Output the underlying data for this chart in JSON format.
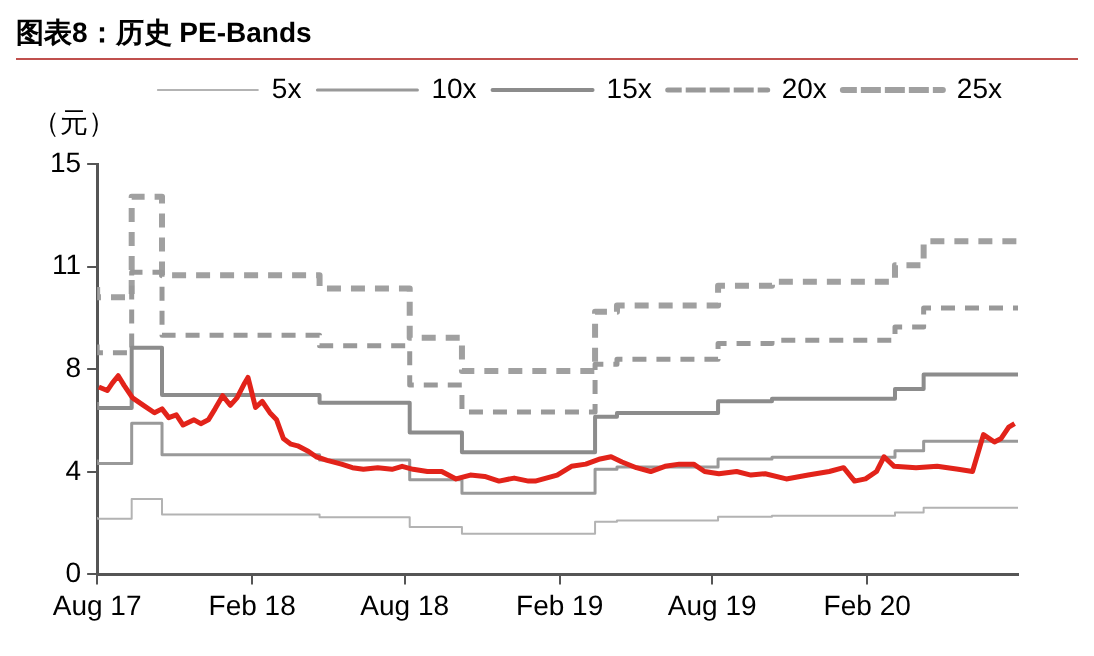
{
  "chart_data": {
    "type": "line",
    "title": "图表8：历史 PE-Bands",
    "ylabel": "（元）",
    "xlim": [
      "2017-08-01",
      "2020-07-29"
    ],
    "xticks": [
      {
        "value": "2017-08-01",
        "label": "Aug 17"
      },
      {
        "value": "2018-02-01",
        "label": "Feb 18"
      },
      {
        "value": "2018-08-01",
        "label": "Aug 18"
      },
      {
        "value": "2019-02-01",
        "label": "Feb 19"
      },
      {
        "value": "2019-08-01",
        "label": "Aug 19"
      },
      {
        "value": "2020-02-01",
        "label": "Feb 20"
      }
    ],
    "ylim": [
      0,
      15
    ],
    "yticks": [
      0,
      {
        "value": 3.75,
        "label": "4"
      },
      {
        "value": 7.5,
        "label": "8"
      },
      {
        "value": 11.25,
        "label": "11"
      },
      15
    ],
    "grid": false,
    "legend": "top",
    "marker": "none",
    "series": [
      {
        "type": "line",
        "color": "#e2231a",
        "line_style": "solid",
        "x": [
          "2017-08-03",
          "2017-08-13",
          "2017-08-19",
          "2017-08-26",
          "2017-09-02",
          "2017-09-12",
          "2017-09-25",
          "2017-10-08",
          "2017-10-17",
          "2017-10-25",
          "2017-11-03",
          "2017-11-11",
          "2017-11-24",
          "2017-12-02",
          "2017-12-11",
          "2017-12-19",
          "2017-12-28",
          "2018-01-06",
          "2018-01-14",
          "2018-01-23",
          "2018-01-27",
          "2018-02-05",
          "2018-02-13",
          "2018-02-22",
          "2018-03-02",
          "2018-03-10",
          "2018-03-19",
          "2018-03-27",
          "2018-04-09",
          "2018-04-18",
          "2018-05-01",
          "2018-05-18",
          "2018-05-31",
          "2018-06-13",
          "2018-06-30",
          "2018-07-17",
          "2018-07-29",
          "2018-08-11",
          "2018-08-28",
          "2018-09-14",
          "2018-10-01",
          "2018-10-18",
          "2018-11-04",
          "2018-11-21",
          "2018-12-09",
          "2018-12-26",
          "2019-01-03",
          "2019-01-29",
          "2019-02-15",
          "2019-03-04",
          "2019-03-21",
          "2019-04-03",
          "2019-04-16",
          "2019-05-03",
          "2019-05-20",
          "2019-06-06",
          "2019-06-23",
          "2019-07-10",
          "2019-07-23",
          "2019-08-09",
          "2019-08-30",
          "2019-09-16",
          "2019-10-03",
          "2019-10-28",
          "2019-11-23",
          "2019-12-18",
          "2020-01-04",
          "2020-01-17",
          "2020-01-30",
          "2020-02-12",
          "2020-02-21",
          "2020-03-04",
          "2020-03-30",
          "2020-04-24",
          "2020-05-19",
          "2020-06-05",
          "2020-06-18",
          "2020-07-01",
          "2020-07-09",
          "2020-07-18",
          "2020-07-25"
        ],
        "values": [
          6.85,
          6.72,
          6.99,
          7.26,
          6.91,
          6.45,
          6.18,
          5.91,
          6.05,
          5.73,
          5.83,
          5.46,
          5.65,
          5.51,
          5.65,
          6.05,
          6.53,
          6.18,
          6.45,
          6.99,
          7.2,
          6.1,
          6.32,
          5.91,
          5.65,
          4.97,
          4.76,
          4.7,
          4.49,
          4.3,
          4.17,
          4.03,
          3.9,
          3.84,
          3.9,
          3.84,
          3.95,
          3.84,
          3.76,
          3.76,
          3.49,
          3.63,
          3.58,
          3.41,
          3.52,
          3.41,
          3.41,
          3.63,
          3.95,
          4.03,
          4.22,
          4.3,
          4.11,
          3.9,
          3.76,
          3.95,
          4.03,
          4.03,
          3.76,
          3.68,
          3.76,
          3.63,
          3.68,
          3.49,
          3.63,
          3.76,
          3.9,
          3.41,
          3.49,
          3.76,
          4.3,
          3.95,
          3.9,
          3.95,
          3.84,
          3.76,
          5.11,
          4.84,
          4.97,
          5.38,
          5.51
        ]
      },
      {
        "type": "step",
        "name": "5x",
        "color": "#b3b3b3",
        "line_style": "solid",
        "x": [
          "2017-08-01",
          "2017-09-11",
          "2017-10-17",
          "2018-04-22",
          "2018-08-07",
          "2018-10-08",
          "2019-03-15",
          "2019-04-10",
          "2019-08-08",
          "2019-10-11",
          "2020-03-05",
          "2020-04-08",
          "2020-05-26",
          "2020-07-29"
        ],
        "values": [
          2.1,
          2.03,
          2.76,
          2.19,
          2.09,
          1.73,
          1.49,
          1.92,
          1.97,
          2.11,
          2.14,
          2.26,
          2.44,
          2.44
        ]
      },
      {
        "type": "step",
        "name": "10x",
        "color": "#999999",
        "line_style": "solid",
        "x": [
          "2017-08-01",
          "2017-09-11",
          "2017-10-17",
          "2018-04-22",
          "2018-08-07",
          "2018-10-08",
          "2019-03-15",
          "2019-04-10",
          "2019-08-08",
          "2019-10-11",
          "2020-03-05",
          "2020-04-08",
          "2020-05-26",
          "2020-07-29"
        ],
        "values": [
          4.2,
          4.05,
          5.52,
          4.37,
          4.18,
          3.46,
          2.97,
          3.84,
          3.93,
          4.22,
          4.28,
          4.52,
          4.87,
          4.87
        ]
      },
      {
        "type": "step",
        "name": "15x",
        "color": "#8c8c8c",
        "line_style": "solid",
        "x": [
          "2017-08-01",
          "2017-09-11",
          "2017-10-17",
          "2018-04-22",
          "2018-08-07",
          "2018-10-08",
          "2019-03-15",
          "2019-04-10",
          "2019-08-08",
          "2019-10-11",
          "2020-03-05",
          "2020-04-08",
          "2020-05-26",
          "2020-07-29"
        ],
        "values": [
          6.3,
          6.08,
          8.28,
          6.56,
          6.27,
          5.19,
          4.46,
          5.76,
          5.9,
          6.33,
          6.42,
          6.78,
          7.31,
          7.31
        ]
      },
      {
        "type": "step",
        "name": "20x",
        "color": "#999999",
        "line_style": "dashed",
        "x": [
          "2017-08-01",
          "2017-09-11",
          "2017-10-17",
          "2018-04-22",
          "2018-08-07",
          "2018-10-08",
          "2019-03-15",
          "2019-04-10",
          "2019-08-08",
          "2019-10-11",
          "2020-03-05",
          "2020-04-08",
          "2020-05-26",
          "2020-07-29"
        ],
        "values": [
          8.4,
          8.1,
          11.04,
          8.74,
          8.36,
          6.92,
          5.94,
          7.68,
          7.86,
          8.44,
          8.56,
          9.04,
          9.74,
          9.74
        ]
      },
      {
        "type": "step",
        "name": "25x",
        "color": "#a0a0a0",
        "line_style": "dashed",
        "x": [
          "2017-08-01",
          "2017-09-11",
          "2017-10-17",
          "2018-04-22",
          "2018-08-07",
          "2018-10-08",
          "2019-03-15",
          "2019-04-10",
          "2019-08-08",
          "2019-10-11",
          "2020-03-05",
          "2020-04-08",
          "2020-05-26",
          "2020-07-29"
        ],
        "values": [
          10.5,
          10.13,
          13.8,
          10.93,
          10.45,
          8.65,
          7.43,
          9.6,
          9.83,
          10.55,
          10.7,
          11.3,
          12.18,
          12.18
        ]
      }
    ]
  }
}
